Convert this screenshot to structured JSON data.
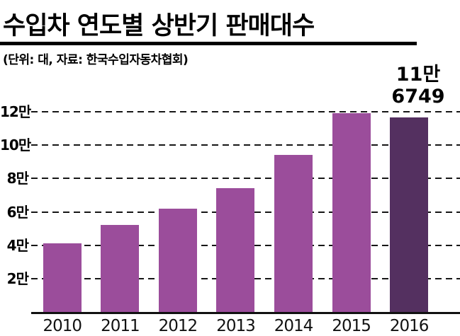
{
  "header": {
    "title": "수입차 연도별 상반기 판매대수",
    "subtitle": "(단위: 대, 자료: 한국수입자동차협회)"
  },
  "annotation": {
    "line1": "11만",
    "line2": "6749"
  },
  "chart_data": {
    "type": "bar",
    "title": "수입차 연도별 상반기 판매대수",
    "subtitle": "(단위: 대, 자료: 한국수입자동차협회)",
    "unit": "대",
    "source": "한국수입자동차협회",
    "categories": [
      "2010",
      "2011",
      "2012",
      "2013",
      "2014",
      "2015",
      "2016"
    ],
    "values": [
      41000,
      52000,
      62000,
      74000,
      94000,
      119000,
      116749
    ],
    "annotations": [
      {
        "target": "2016",
        "text": "11만 6749",
        "value": 116749
      }
    ],
    "yticks": [
      {
        "label": "12만",
        "value": 120000
      },
      {
        "label": "10만",
        "value": 100000
      },
      {
        "label": "8만",
        "value": 80000
      },
      {
        "label": "6만",
        "value": 60000
      },
      {
        "label": "4만",
        "value": 40000
      },
      {
        "label": "2만",
        "value": 20000
      }
    ],
    "ylim": [
      0,
      120000
    ],
    "xlabel": "",
    "ylabel": "",
    "grid": "horizontal-dashed",
    "legend": "none",
    "bar_color": "#9b4d9b",
    "highlight_color": "#543060",
    "highlight_index": 6,
    "axis_color": "#111111"
  }
}
